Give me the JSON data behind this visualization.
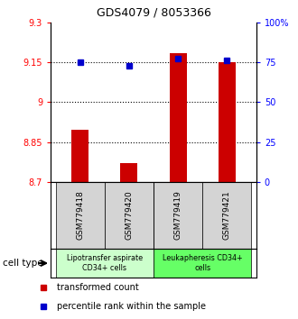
{
  "title": "GDS4079 / 8053366",
  "samples": [
    "GSM779418",
    "GSM779420",
    "GSM779419",
    "GSM779421"
  ],
  "bar_values": [
    8.895,
    8.77,
    9.185,
    9.15
  ],
  "percentile_values": [
    75,
    73,
    77,
    76
  ],
  "ylim_left": [
    8.7,
    9.3
  ],
  "ylim_right": [
    0,
    100
  ],
  "yticks_left": [
    8.7,
    8.85,
    9.0,
    9.15,
    9.3
  ],
  "ytick_labels_left": [
    "8.7",
    "8.85",
    "9",
    "9.15",
    "9.3"
  ],
  "yticks_right": [
    0,
    25,
    50,
    75,
    100
  ],
  "ytick_labels_right": [
    "0",
    "25",
    "50",
    "75",
    "100%"
  ],
  "hlines": [
    8.85,
    9.0,
    9.15
  ],
  "bar_color": "#cc0000",
  "dot_color": "#0000cc",
  "bar_bottom": 8.7,
  "groups": [
    {
      "label": "Lipotransfer aspirate\nCD34+ cells",
      "indices": [
        0,
        1
      ],
      "color": "#ccffcc"
    },
    {
      "label": "Leukapheresis CD34+\ncells",
      "indices": [
        2,
        3
      ],
      "color": "#66ff66"
    }
  ],
  "cell_type_label": "cell type",
  "legend_bar_label": "transformed count",
  "legend_dot_label": "percentile rank within the sample",
  "x_positions": [
    0,
    1,
    2,
    3
  ],
  "group_boundary": 1.5,
  "bar_width": 0.35
}
